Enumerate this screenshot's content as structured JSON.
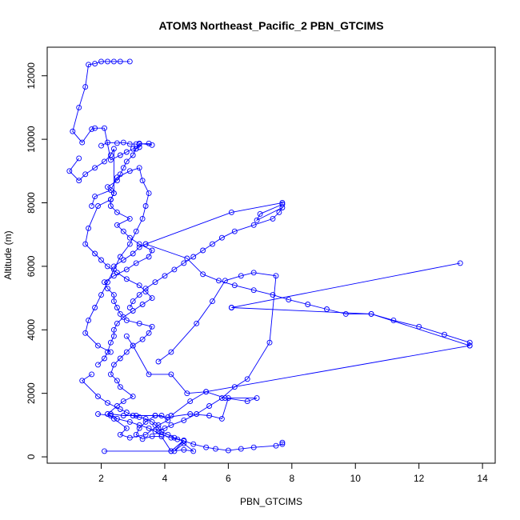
{
  "chart_data": {
    "type": "line",
    "title": "ATOM3 Northeast_Pacific_2 PBN_GTCIMS",
    "xlabel": "PBN_GTCIMS",
    "ylabel": "Altitude (m)",
    "xlim": [
      0.3,
      14.4
    ],
    "ylim": [
      -200,
      12900
    ],
    "xticks": [
      2,
      4,
      6,
      8,
      10,
      12,
      14
    ],
    "yticks": [
      0,
      2000,
      4000,
      6000,
      8000,
      10000,
      12000
    ],
    "grid": false,
    "legend": "none",
    "marker": "open-circle",
    "series_color": "#0000ff",
    "series": [
      {
        "x": [
          2.1,
          4.2,
          4.6,
          4.9,
          4.6,
          4.3,
          4.6,
          4.2,
          3.9,
          3.6,
          3.3,
          3.1,
          3.2,
          3.4,
          3.7,
          3.9,
          4.1,
          3.8,
          3.4,
          2.9,
          2.6,
          2.8,
          2.4,
          2.2,
          2.5,
          2.7,
          3.0,
          2.6,
          2.5,
          2.3,
          2.4,
          2.6,
          2.8,
          3.0,
          3.3,
          3.5,
          3.6,
          3.2,
          2.8,
          2.6,
          2.5,
          2.4,
          2.4,
          2.2,
          2.1,
          2.4,
          2.8,
          3.1,
          3.5,
          3.6,
          3.2,
          2.9,
          2.7,
          2.5,
          2.9,
          2.5,
          2.3,
          2.3,
          2.4,
          2.2,
          2.5,
          2.6,
          2.7,
          2.8,
          3.0,
          3.1,
          3.2,
          3.5,
          3.6,
          3.2
        ],
        "y": [
          180,
          180,
          220,
          180,
          420,
          180,
          520,
          180,
          640,
          650,
          560,
          700,
          900,
          1100,
          1300,
          1300,
          1150,
          1000,
          700,
          600,
          700,
          900,
          1200,
          1350,
          1600,
          1750,
          1900,
          2200,
          2400,
          2600,
          2900,
          3100,
          3300,
          3500,
          3700,
          3900,
          4100,
          4200,
          4300,
          4500,
          4700,
          4900,
          5100,
          5300,
          5500,
          5700,
          5900,
          6100,
          6300,
          6500,
          6700,
          6900,
          7100,
          7300,
          7500,
          7700,
          7900,
          8100,
          8300,
          8500,
          8700,
          8900,
          9100,
          9300,
          9500,
          9700,
          9850,
          9870,
          9820,
          9870
        ]
      },
      {
        "x": [
          2.0,
          2.2,
          2.5,
          2.7,
          2.9,
          3.1,
          3.2,
          3.0,
          2.8,
          2.6,
          2.3,
          2.1,
          1.8,
          1.7,
          1.4,
          1.1,
          1.3,
          1.5,
          1.6,
          1.8,
          2.0,
          2.4,
          2.9,
          2.6,
          2.2
        ],
        "y": [
          9800,
          9900,
          9880,
          9900,
          9850,
          9850,
          9750,
          9700,
          9600,
          9500,
          9350,
          10350,
          10350,
          10320,
          9900,
          10250,
          11000,
          11650,
          12350,
          12380,
          12450,
          12450,
          12450,
          12450,
          12450
        ]
      },
      {
        "x": [
          1.3,
          1.0,
          1.3,
          1.5,
          1.8,
          2.1,
          2.3,
          2.4,
          2.4,
          2.3,
          1.9,
          1.6,
          1.5,
          1.8,
          2.0,
          2.2,
          2.5,
          2.8,
          3.2,
          3.4,
          3.6,
          3.3,
          3.0,
          2.7,
          2.5,
          2.4,
          2.4,
          2.3,
          2.2,
          2.1,
          1.9
        ],
        "y": [
          9400,
          9000,
          8700,
          8900,
          9100,
          9300,
          9500,
          9700,
          8300,
          8100,
          7900,
          7200,
          6700,
          6400,
          6200,
          6000,
          5800,
          5600,
          5400,
          5200,
          5000,
          4800,
          4600,
          4400,
          4200,
          4000,
          3800,
          3600,
          3300,
          3100,
          2900
        ]
      },
      {
        "x": [
          1.7,
          1.4,
          1.9,
          2.2,
          2.6,
          2.8,
          3.0,
          3.2,
          3.4,
          3.6,
          3.7,
          3.8,
          3.9,
          4.1,
          4.3,
          4.6,
          4.9,
          5.3,
          5.6,
          6.0,
          6.4,
          6.8,
          7.5,
          7.7,
          7.7
        ],
        "y": [
          2600,
          2400,
          1900,
          1700,
          1500,
          1400,
          1300,
          1250,
          1200,
          1100,
          1000,
          900,
          800,
          700,
          600,
          500,
          400,
          300,
          250,
          200,
          250,
          300,
          350,
          400,
          450
        ]
      },
      {
        "x": [
          3.4,
          6.1,
          7.7,
          7.7,
          7.0,
          6.9,
          7.7,
          7.6,
          7.4,
          6.8,
          6.2,
          5.8,
          5.5,
          5.2,
          4.9,
          4.6,
          4.3,
          4.0,
          3.7,
          3.4,
          3.2,
          3.0,
          2.9
        ],
        "y": [
          6700,
          7700,
          8000,
          7950,
          7650,
          7450,
          7850,
          7700,
          7500,
          7300,
          7100,
          6900,
          6700,
          6500,
          6300,
          6100,
          5900,
          5700,
          5500,
          5300,
          5100,
          4900,
          4700
        ]
      },
      {
        "x": [
          1.7,
          1.8,
          2.3,
          2.5,
          2.9,
          3.2,
          3.3,
          3.5,
          3.4,
          3.3,
          3.1,
          2.9,
          2.6,
          2.4,
          2.2,
          2.0,
          1.8,
          1.6,
          1.5,
          1.9,
          2.3
        ],
        "y": [
          7900,
          8200,
          8400,
          8800,
          9000,
          9100,
          8700,
          8300,
          7900,
          7500,
          7100,
          6700,
          6300,
          5900,
          5500,
          5100,
          4700,
          4300,
          3900,
          3500,
          3300
        ]
      },
      {
        "x": [
          2.4,
          2.7,
          3.0,
          3.2,
          3.4,
          4.7,
          5.2,
          5.7,
          6.2,
          6.8,
          7.4,
          7.9,
          8.5,
          9.1,
          9.7,
          10.5,
          11.2,
          12.0,
          12.8,
          13.6,
          13.6
        ],
        "y": [
          6000,
          6200,
          6400,
          6600,
          6700,
          6250,
          5750,
          5550,
          5400,
          5250,
          5100,
          4950,
          4800,
          4650,
          4500,
          4500,
          4300,
          4100,
          3850,
          3600,
          3500
        ]
      },
      {
        "x": [
          13.3,
          6.1,
          6.1,
          10.5,
          13.6,
          5.3,
          4.8,
          4.2
        ],
        "y": [
          6100,
          4700,
          4700,
          4500,
          3500,
          2050,
          1750,
          1300
        ]
      },
      {
        "x": [
          3.8,
          4.2,
          5.0,
          5.5,
          5.9,
          6.4,
          6.8,
          7.5,
          7.3,
          6.6,
          6.2,
          5.8,
          5.4,
          5.0,
          4.6,
          4.2,
          4.0,
          3.8
        ],
        "y": [
          3000,
          3300,
          4200,
          4900,
          5550,
          5700,
          5800,
          5700,
          3600,
          2450,
          2200,
          1850,
          1600,
          1350,
          1150,
          1000,
          900,
          800
        ]
      },
      {
        "x": [
          2.8,
          3.0,
          3.5,
          4.2,
          4.7,
          5.3,
          5.9,
          6.6,
          6.9,
          6.0,
          5.8,
          5.4,
          4.8,
          4.1,
          3.7,
          3.1,
          2.7,
          2.3
        ],
        "y": [
          3800,
          3500,
          2600,
          2600,
          2000,
          2050,
          1850,
          1750,
          1850,
          1850,
          1200,
          1300,
          1350,
          1250,
          1300,
          1300,
          1300,
          1350
        ]
      },
      {
        "x": [
          1.9,
          2.3,
          2.5,
          2.9,
          3.2,
          3.5,
          3.7,
          3.9,
          4.2,
          4.4,
          4.6
        ],
        "y": [
          1350,
          1300,
          1200,
          1100,
          1000,
          900,
          800,
          700,
          600,
          550,
          500
        ]
      }
    ]
  }
}
